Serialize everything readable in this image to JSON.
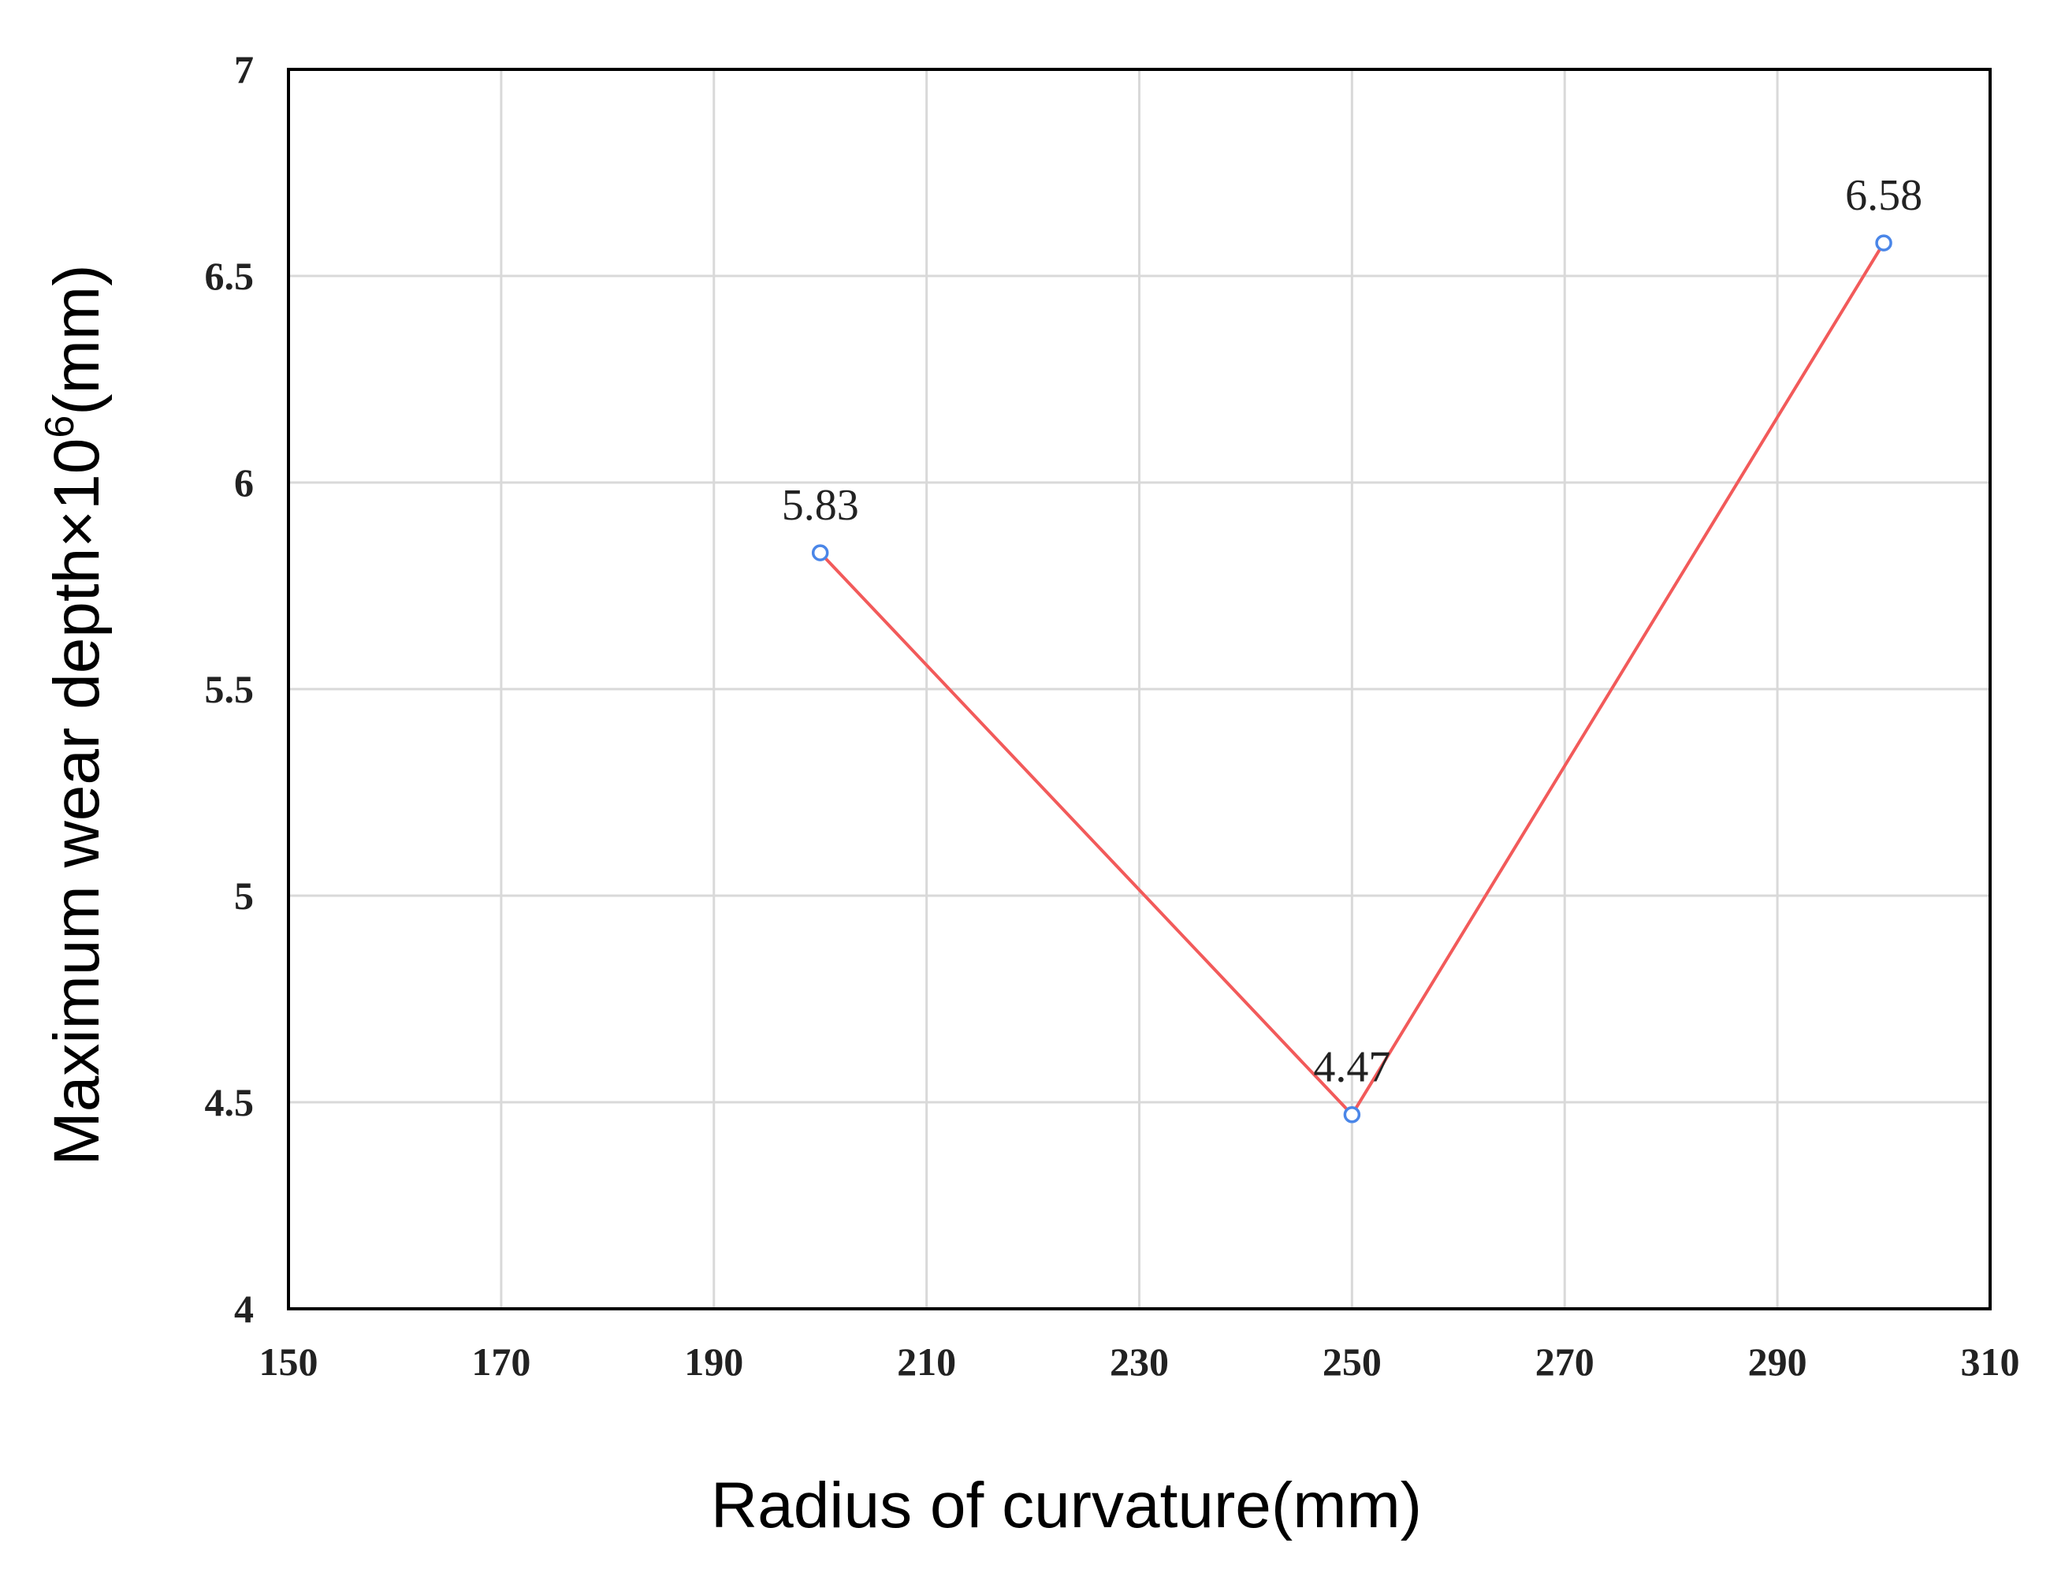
{
  "chart_data": {
    "type": "line",
    "xlabel": "Radius of curvature(mm)",
    "ylabel": {
      "prefix": "Maximum wear depth×10",
      "superscript": "6",
      "suffix": "(mm)"
    },
    "xlim": [
      150,
      310
    ],
    "ylim": [
      4,
      7
    ],
    "xticks": [
      150,
      170,
      190,
      210,
      230,
      250,
      270,
      290,
      310
    ],
    "yticks": [
      4,
      4.5,
      5,
      5.5,
      6,
      6.5,
      7
    ],
    "ytick_labels": [
      "4",
      "4.5",
      "5",
      "5.5",
      "6",
      "6.5",
      "7"
    ],
    "grid": true,
    "legend": "none",
    "series": [
      {
        "x": [
          200,
          250,
          300
        ],
        "y": [
          5.83,
          4.47,
          6.58
        ],
        "labels": [
          "5.83",
          "4.47",
          "6.58"
        ],
        "line_color": "#f25a5a",
        "marker_color": "#4a86e8",
        "marker": "hollow-circle"
      }
    ],
    "colors": {
      "grid": "#d9d9d9",
      "axis": "#000000"
    }
  }
}
